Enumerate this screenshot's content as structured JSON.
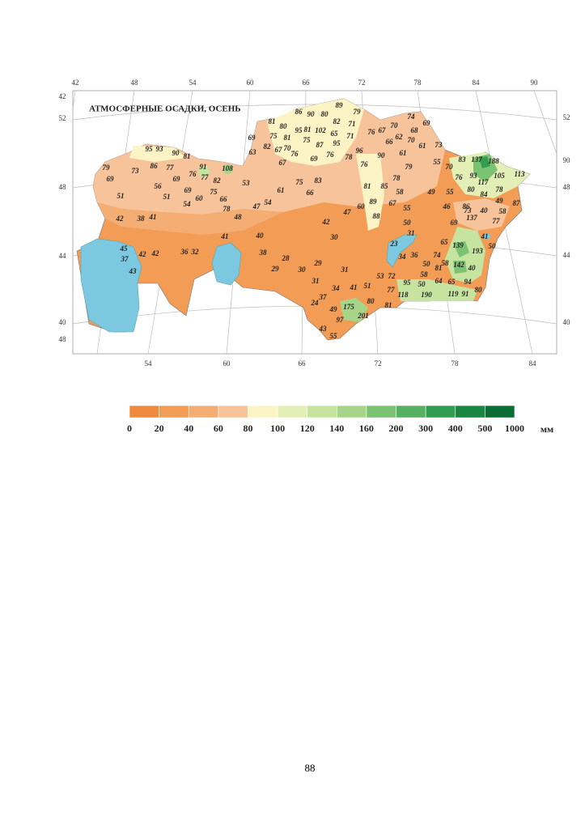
{
  "map": {
    "title": "АТМОСФЕРНЫЕ ОСАДКИ, ОСЕНЬ",
    "top_longitudes": [
      42,
      48,
      54,
      60,
      66,
      72,
      78,
      84,
      90
    ],
    "bottom_longitudes": [
      54,
      60,
      66,
      72,
      78,
      84
    ],
    "left_latitudes": [
      42,
      52,
      48,
      44,
      40,
      48
    ],
    "right_latitudes": [
      52,
      90,
      48,
      44,
      40
    ],
    "stations": [
      95,
      93,
      90,
      81,
      79,
      69,
      73,
      86,
      77,
      91,
      108,
      76,
      77,
      82,
      69,
      56,
      69,
      75,
      66,
      53,
      51,
      51,
      60,
      54,
      78,
      48,
      47,
      54,
      61,
      75,
      83,
      66,
      42,
      38,
      41,
      45,
      37,
      42,
      42,
      43,
      36,
      32,
      41,
      40,
      38,
      28,
      29,
      30,
      29,
      31,
      31,
      30,
      42,
      47,
      60,
      89,
      88,
      81,
      85,
      78,
      76,
      96,
      90,
      79,
      61,
      89,
      79,
      86,
      90,
      80,
      82,
      81,
      80,
      95,
      81,
      102,
      65,
      71,
      67,
      70,
      74,
      69,
      68,
      76,
      69,
      75,
      81,
      75,
      71,
      62,
      70,
      66,
      87,
      95,
      61,
      73,
      82,
      67,
      70,
      63,
      76,
      76,
      78,
      69,
      67,
      55,
      70,
      83,
      137,
      188,
      76,
      93,
      117,
      105,
      113,
      80,
      84,
      78,
      49,
      87,
      58,
      86,
      40,
      77,
      73,
      137,
      49,
      55,
      58,
      67,
      55,
      46,
      50,
      31,
      69,
      65,
      139,
      41,
      50,
      193,
      23,
      34,
      36,
      74,
      58,
      81,
      142,
      40,
      50,
      58,
      53,
      72,
      95,
      50,
      64,
      65,
      94,
      80,
      118,
      190,
      119,
      91,
      77,
      81,
      80,
      51,
      41,
      34,
      37,
      24,
      49,
      175,
      201,
      97,
      43,
      55
    ]
  },
  "legend": {
    "labels": [
      0,
      20,
      40,
      60,
      80,
      100,
      120,
      140,
      160,
      200,
      300,
      400,
      500,
      1000
    ],
    "unit": "мм",
    "colors": [
      "#f08a3c",
      "#f29c56",
      "#f4ae74",
      "#f6c39a",
      "#fcf4c4",
      "#e3efb6",
      "#c6e4a0",
      "#a6d58a",
      "#7cc273",
      "#55b062",
      "#329c50",
      "#1a8741",
      "#0b6c34"
    ]
  },
  "page_number": "88"
}
